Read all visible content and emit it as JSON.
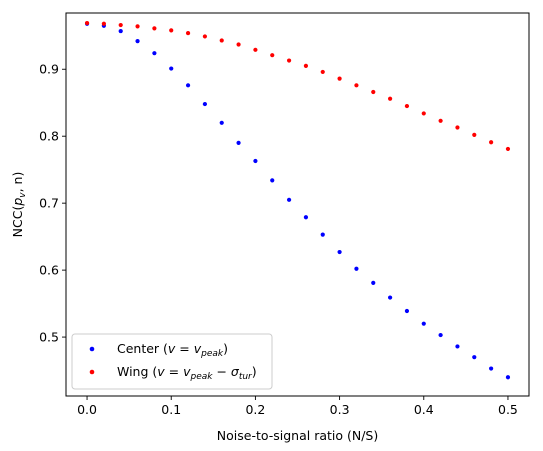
{
  "chart_data": {
    "type": "scatter",
    "xlabel": "Noise-to-signal ratio (N/S)",
    "ylabel": {
      "base": "NCC(",
      "sub_p": "p",
      "sub_v": "v",
      "rest": ", n)"
    },
    "xlim": [
      -0.025,
      0.525
    ],
    "ylim": [
      0.412,
      0.984
    ],
    "xticks": [
      0.0,
      0.1,
      0.2,
      0.3,
      0.4,
      0.5
    ],
    "xtick_labels": [
      "0.0",
      "0.1",
      "0.2",
      "0.3",
      "0.4",
      "0.5"
    ],
    "yticks": [
      0.5,
      0.6,
      0.7,
      0.8,
      0.9
    ],
    "ytick_labels": [
      "0.5",
      "0.6",
      "0.7",
      "0.8",
      "0.9"
    ],
    "legend_position": "bottom-left",
    "x": [
      0.0,
      0.02,
      0.04,
      0.06,
      0.08,
      0.1,
      0.12,
      0.14,
      0.16,
      0.18,
      0.2,
      0.22,
      0.24,
      0.26,
      0.28,
      0.3,
      0.32,
      0.34,
      0.36,
      0.38,
      0.4,
      0.42,
      0.44,
      0.46,
      0.48,
      0.5
    ],
    "series": [
      {
        "name": "Center",
        "legend": {
          "prefix": "Center (",
          "main": "v = v",
          "sub": "peak",
          "suffix": ")"
        },
        "color": "#0000ff",
        "values": [
          0.968,
          0.965,
          0.957,
          0.942,
          0.924,
          0.901,
          0.876,
          0.848,
          0.82,
          0.79,
          0.763,
          0.734,
          0.705,
          0.679,
          0.653,
          0.627,
          0.602,
          0.581,
          0.559,
          0.539,
          0.52,
          0.503,
          0.486,
          0.47,
          0.453,
          0.44
        ]
      },
      {
        "name": "Wing",
        "legend": {
          "prefix": "Wing (",
          "main": "v = v",
          "sub": "peak",
          "minus": " − σ",
          "sub2": "tur",
          "suffix": ")"
        },
        "color": "#ff0000",
        "values": [
          0.969,
          0.968,
          0.966,
          0.964,
          0.961,
          0.958,
          0.954,
          0.949,
          0.943,
          0.937,
          0.929,
          0.921,
          0.913,
          0.905,
          0.896,
          0.886,
          0.876,
          0.866,
          0.856,
          0.845,
          0.834,
          0.823,
          0.813,
          0.802,
          0.791,
          0.781
        ]
      }
    ]
  }
}
